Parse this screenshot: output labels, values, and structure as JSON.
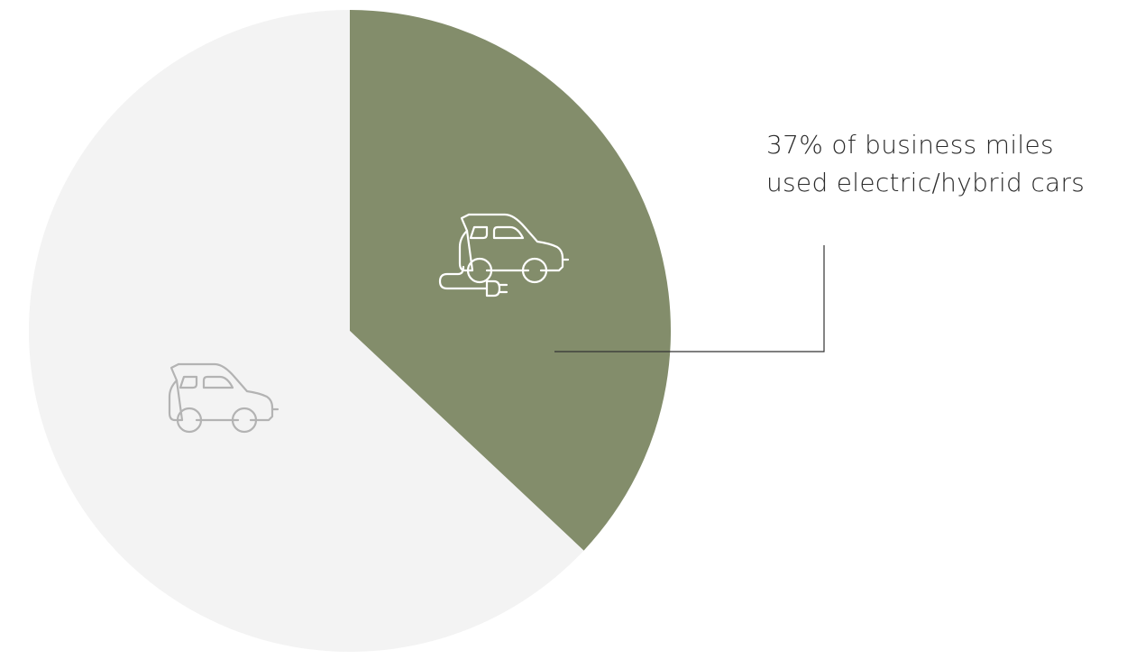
{
  "chart_data": {
    "type": "pie",
    "slices": [
      {
        "value": 37,
        "color": "#838d6b"
      },
      {
        "value": 63,
        "color": "#f3f3f3"
      }
    ],
    "annotation": {
      "line1": "37% of business miles",
      "line2": "used electric/hybrid cars"
    },
    "icons": {
      "electric": "electric-car-icon",
      "standard": "car-icon"
    }
  }
}
